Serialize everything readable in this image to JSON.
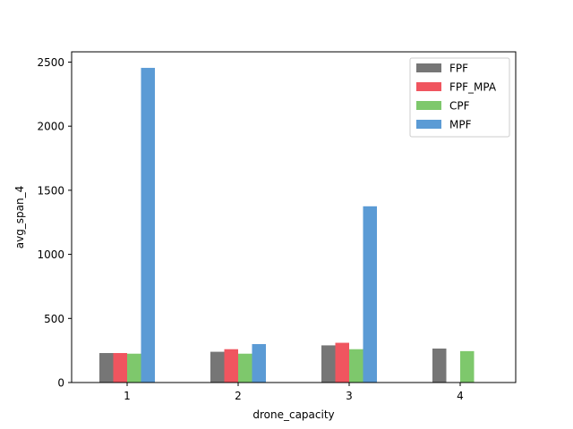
{
  "chart_data": {
    "type": "bar",
    "title": "",
    "xlabel": "drone_capacity",
    "ylabel": "avg_span_4",
    "categories": [
      "1",
      "2",
      "3",
      "4"
    ],
    "ylim": [
      0,
      2580
    ],
    "yticks": [
      0,
      500,
      1000,
      1500,
      2000,
      2500
    ],
    "grid": false,
    "legend_position": "top-right",
    "series": [
      {
        "name": "FPF",
        "color": "#767676",
        "values": [
          230,
          240,
          290,
          265
        ]
      },
      {
        "name": "FPF_MPA",
        "color": "#f0555f",
        "values": [
          230,
          260,
          310,
          null
        ]
      },
      {
        "name": "CPF",
        "color": "#7ec86c",
        "values": [
          225,
          225,
          260,
          245
        ]
      },
      {
        "name": "MPF",
        "color": "#5b9bd5",
        "values": [
          2455,
          300,
          1375,
          null
        ]
      }
    ]
  }
}
